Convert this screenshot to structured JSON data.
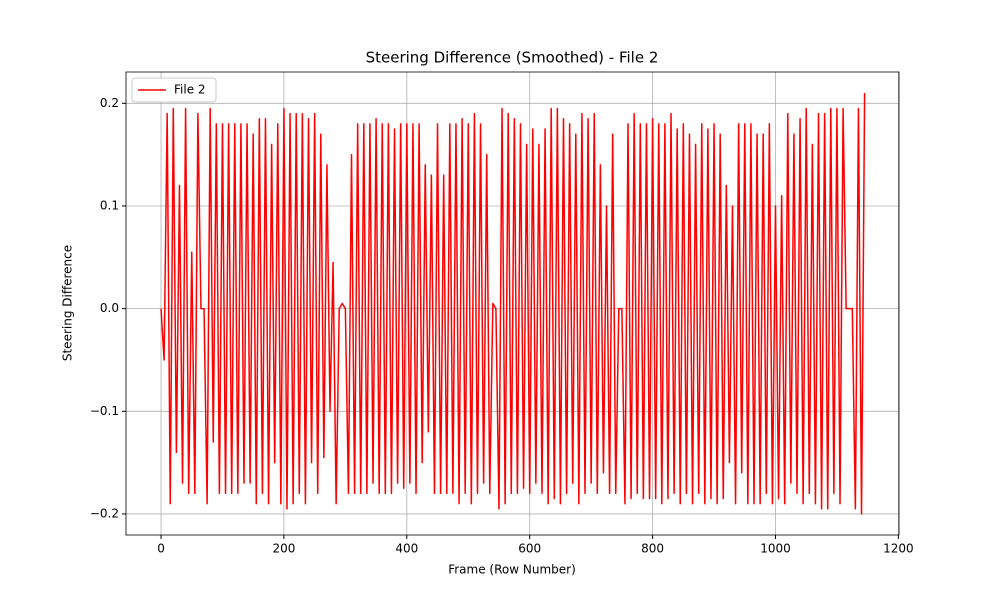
{
  "chart_data": {
    "type": "line",
    "title": "Steering Difference (Smoothed) - File 2",
    "xlabel": "Frame (Row Number)",
    "ylabel": "Steering Difference",
    "x": [
      0,
      5,
      10,
      15,
      20,
      25,
      30,
      35,
      40,
      45,
      50,
      55,
      60,
      65,
      70,
      75,
      80,
      85,
      90,
      95,
      100,
      105,
      110,
      115,
      120,
      125,
      130,
      135,
      140,
      145,
      150,
      155,
      160,
      165,
      170,
      175,
      180,
      185,
      190,
      195,
      200,
      205,
      210,
      215,
      220,
      225,
      230,
      235,
      240,
      245,
      250,
      255,
      260,
      265,
      270,
      275,
      280,
      285,
      290,
      295,
      300,
      305,
      310,
      315,
      320,
      325,
      330,
      335,
      340,
      345,
      350,
      355,
      360,
      365,
      370,
      375,
      380,
      385,
      390,
      395,
      400,
      405,
      410,
      415,
      420,
      425,
      430,
      435,
      440,
      445,
      450,
      455,
      460,
      465,
      470,
      475,
      480,
      485,
      490,
      495,
      500,
      505,
      510,
      515,
      520,
      525,
      530,
      535,
      540,
      545,
      550,
      555,
      560,
      565,
      570,
      575,
      580,
      585,
      590,
      595,
      600,
      605,
      610,
      615,
      620,
      625,
      630,
      635,
      640,
      645,
      650,
      655,
      660,
      665,
      670,
      675,
      680,
      685,
      690,
      695,
      700,
      705,
      710,
      715,
      720,
      725,
      730,
      735,
      740,
      745,
      750,
      755,
      760,
      765,
      770,
      775,
      780,
      785,
      790,
      795,
      800,
      805,
      810,
      815,
      820,
      825,
      830,
      835,
      840,
      845,
      850,
      855,
      860,
      865,
      870,
      875,
      880,
      885,
      890,
      895,
      900,
      905,
      910,
      915,
      920,
      925,
      930,
      935,
      940,
      945,
      950,
      955,
      960,
      965,
      970,
      975,
      980,
      985,
      990,
      995,
      1000,
      1005,
      1010,
      1015,
      1020,
      1025,
      1030,
      1035,
      1040,
      1045,
      1050,
      1055,
      1060,
      1065,
      1070,
      1075,
      1080,
      1085,
      1090,
      1095,
      1100,
      1105,
      1110,
      1115,
      1120,
      1125,
      1130,
      1135,
      1140,
      1145
    ],
    "series": [
      {
        "name": "File 2",
        "color": "#ff0000",
        "values": [
          0,
          -0.05,
          0.19,
          -0.19,
          0.195,
          -0.14,
          0.12,
          -0.17,
          0.195,
          -0.18,
          0.055,
          -0.18,
          0.19,
          0.0,
          0.0,
          -0.19,
          0.195,
          -0.13,
          0.18,
          -0.18,
          0.18,
          -0.18,
          0.18,
          -0.18,
          0.18,
          -0.18,
          0.18,
          -0.17,
          0.18,
          -0.17,
          0.17,
          -0.19,
          0.185,
          -0.18,
          0.185,
          -0.19,
          0.16,
          -0.15,
          0.18,
          -0.19,
          0.195,
          -0.195,
          0.19,
          -0.19,
          0.19,
          -0.18,
          0.19,
          -0.19,
          0.185,
          -0.15,
          0.19,
          -0.18,
          0.17,
          -0.145,
          0.14,
          -0.1,
          0.045,
          -0.19,
          0.0,
          0.005,
          0.0,
          -0.18,
          0.15,
          -0.18,
          0.18,
          -0.18,
          0.18,
          -0.18,
          0.18,
          -0.17,
          0.185,
          -0.18,
          0.18,
          -0.18,
          0.18,
          -0.18,
          0.175,
          -0.17,
          0.18,
          -0.175,
          0.18,
          -0.17,
          0.18,
          -0.18,
          0.18,
          -0.15,
          0.14,
          -0.12,
          0.13,
          -0.18,
          0.18,
          -0.18,
          0.13,
          -0.18,
          0.18,
          -0.18,
          0.18,
          -0.19,
          0.185,
          -0.18,
          0.18,
          -0.19,
          0.19,
          -0.18,
          0.18,
          -0.17,
          0.15,
          -0.18,
          0.005,
          0.0,
          -0.195,
          0.195,
          -0.19,
          0.19,
          -0.18,
          0.185,
          -0.18,
          0.18,
          -0.175,
          0.16,
          -0.18,
          0.175,
          -0.17,
          0.16,
          -0.18,
          0.175,
          -0.19,
          0.195,
          -0.185,
          0.195,
          -0.19,
          0.185,
          -0.18,
          0.18,
          -0.17,
          0.17,
          -0.19,
          0.19,
          -0.18,
          0.185,
          -0.17,
          0.19,
          -0.18,
          0.14,
          -0.16,
          0.1,
          -0.18,
          0.17,
          -0.18,
          0.0,
          0.0,
          -0.19,
          0.18,
          -0.185,
          0.19,
          -0.18,
          0.18,
          -0.185,
          0.18,
          -0.185,
          0.185,
          -0.185,
          0.18,
          -0.19,
          0.18,
          -0.185,
          0.19,
          -0.18,
          0.175,
          -0.19,
          0.18,
          -0.18,
          0.17,
          -0.19,
          0.16,
          -0.18,
          0.18,
          -0.19,
          0.175,
          -0.185,
          0.18,
          -0.19,
          0.17,
          -0.185,
          0.12,
          -0.15,
          0.1,
          -0.19,
          0.18,
          -0.16,
          0.18,
          -0.19,
          0.18,
          -0.19,
          0.17,
          -0.19,
          0.17,
          -0.18,
          0.18,
          -0.19,
          0.1,
          -0.185,
          0.11,
          -0.19,
          0.19,
          -0.17,
          0.17,
          -0.18,
          0.185,
          -0.19,
          0.195,
          -0.18,
          0.16,
          -0.19,
          0.19,
          -0.195,
          0.19,
          -0.195,
          0.195,
          -0.18,
          0.195,
          -0.19,
          0.195,
          0.0,
          0.0,
          0.0,
          -0.195,
          0.195,
          -0.2,
          0.21
        ]
      }
    ],
    "xlim": [
      -57,
      1201
    ],
    "ylim": [
      -0.2205,
      0.2305
    ],
    "xticks": [
      0,
      200,
      400,
      600,
      800,
      1000,
      1200
    ],
    "yticks": [
      {
        "value": -0.2,
        "label": "−0.2"
      },
      {
        "value": -0.1,
        "label": "−0.1"
      },
      {
        "value": 0,
        "label": "0.0"
      },
      0.1,
      0.2
    ],
    "grid": true,
    "legend": "upper left"
  }
}
